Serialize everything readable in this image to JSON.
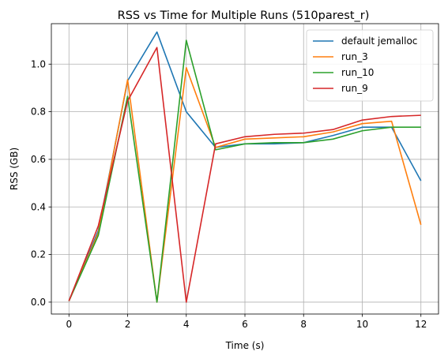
{
  "chart_data": {
    "type": "line",
    "title": "RSS vs Time for Multiple Runs (510parest_r)",
    "xlabel": "Time (s)",
    "ylabel": "RSS (GB)",
    "xlim": [
      -0.6,
      12.6
    ],
    "ylim": [
      -0.05,
      1.17
    ],
    "xticks": [
      0,
      2,
      4,
      6,
      8,
      10,
      12
    ],
    "yticks": [
      0.0,
      0.2,
      0.4,
      0.6,
      0.8,
      1.0
    ],
    "grid": true,
    "legend_position": "top-right",
    "x": [
      0,
      1,
      2,
      3,
      4,
      5,
      6,
      7,
      8,
      9,
      10,
      11,
      12
    ],
    "series": [
      {
        "name": "default jemalloc",
        "color": "#1f77b4",
        "values": [
          0.005,
          0.3,
          0.93,
          1.135,
          0.8,
          0.65,
          0.665,
          0.665,
          0.67,
          0.7,
          0.735,
          0.735,
          0.51
        ]
      },
      {
        "name": "run_3",
        "color": "#ff7f0e",
        "values": [
          0.005,
          0.29,
          0.935,
          0.0,
          0.985,
          0.65,
          0.685,
          0.69,
          0.695,
          0.715,
          0.75,
          0.76,
          0.325
        ]
      },
      {
        "name": "run_10",
        "color": "#2ca02c",
        "values": [
          0.005,
          0.28,
          0.865,
          0.0,
          1.1,
          0.64,
          0.665,
          0.67,
          0.67,
          0.685,
          0.72,
          0.735,
          0.735
        ]
      },
      {
        "name": "run_9",
        "color": "#d62728",
        "values": [
          0.005,
          0.32,
          0.845,
          1.07,
          0.0,
          0.665,
          0.695,
          0.705,
          0.71,
          0.725,
          0.765,
          0.78,
          0.785
        ]
      }
    ]
  }
}
